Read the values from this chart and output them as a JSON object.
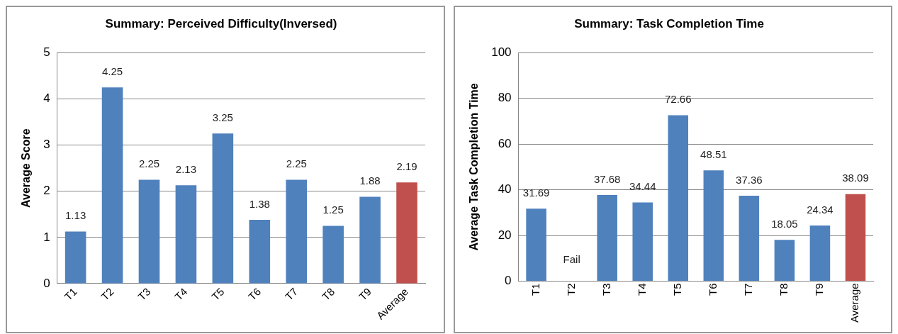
{
  "chart_data": [
    {
      "type": "bar",
      "title": "Summary: Perceived Difficulty(Inversed)",
      "ylabel": "Average Score",
      "categories": [
        "T1",
        "T2",
        "T3",
        "T4",
        "T5",
        "T6",
        "T7",
        "T8",
        "T9",
        "Average"
      ],
      "values": [
        1.13,
        4.25,
        2.25,
        2.13,
        3.25,
        1.38,
        2.25,
        1.25,
        1.88,
        2.19
      ],
      "colors": [
        "#4f81bd",
        "#4f81bd",
        "#4f81bd",
        "#4f81bd",
        "#4f81bd",
        "#4f81bd",
        "#4f81bd",
        "#4f81bd",
        "#4f81bd",
        "#c0504d"
      ],
      "ylim": [
        0,
        5
      ],
      "yticks": [
        0,
        1,
        2,
        3,
        4,
        5
      ],
      "grid": "y",
      "data_labels": true
    },
    {
      "type": "bar",
      "title": "Summary: Task Completion Time",
      "ylabel": "Average Task Completion Time",
      "categories": [
        "T1",
        "T2",
        "T3",
        "T4",
        "T5",
        "T6",
        "T7",
        "T8",
        "T9",
        "Average"
      ],
      "values": [
        31.69,
        null,
        37.68,
        34.44,
        72.66,
        48.51,
        37.36,
        18.05,
        24.34,
        38.09
      ],
      "value_labels": [
        "31.69",
        "Fail",
        "37.68",
        "34.44",
        "72.66",
        "48.51",
        "37.36",
        "18.05",
        "24.34",
        "38.09"
      ],
      "colors": [
        "#4f81bd",
        "#4f81bd",
        "#4f81bd",
        "#4f81bd",
        "#4f81bd",
        "#4f81bd",
        "#4f81bd",
        "#4f81bd",
        "#4f81bd",
        "#c0504d"
      ],
      "ylim": [
        0,
        100
      ],
      "yticks": [
        0,
        20,
        40,
        60,
        80,
        100
      ],
      "grid": "y"
    }
  ]
}
